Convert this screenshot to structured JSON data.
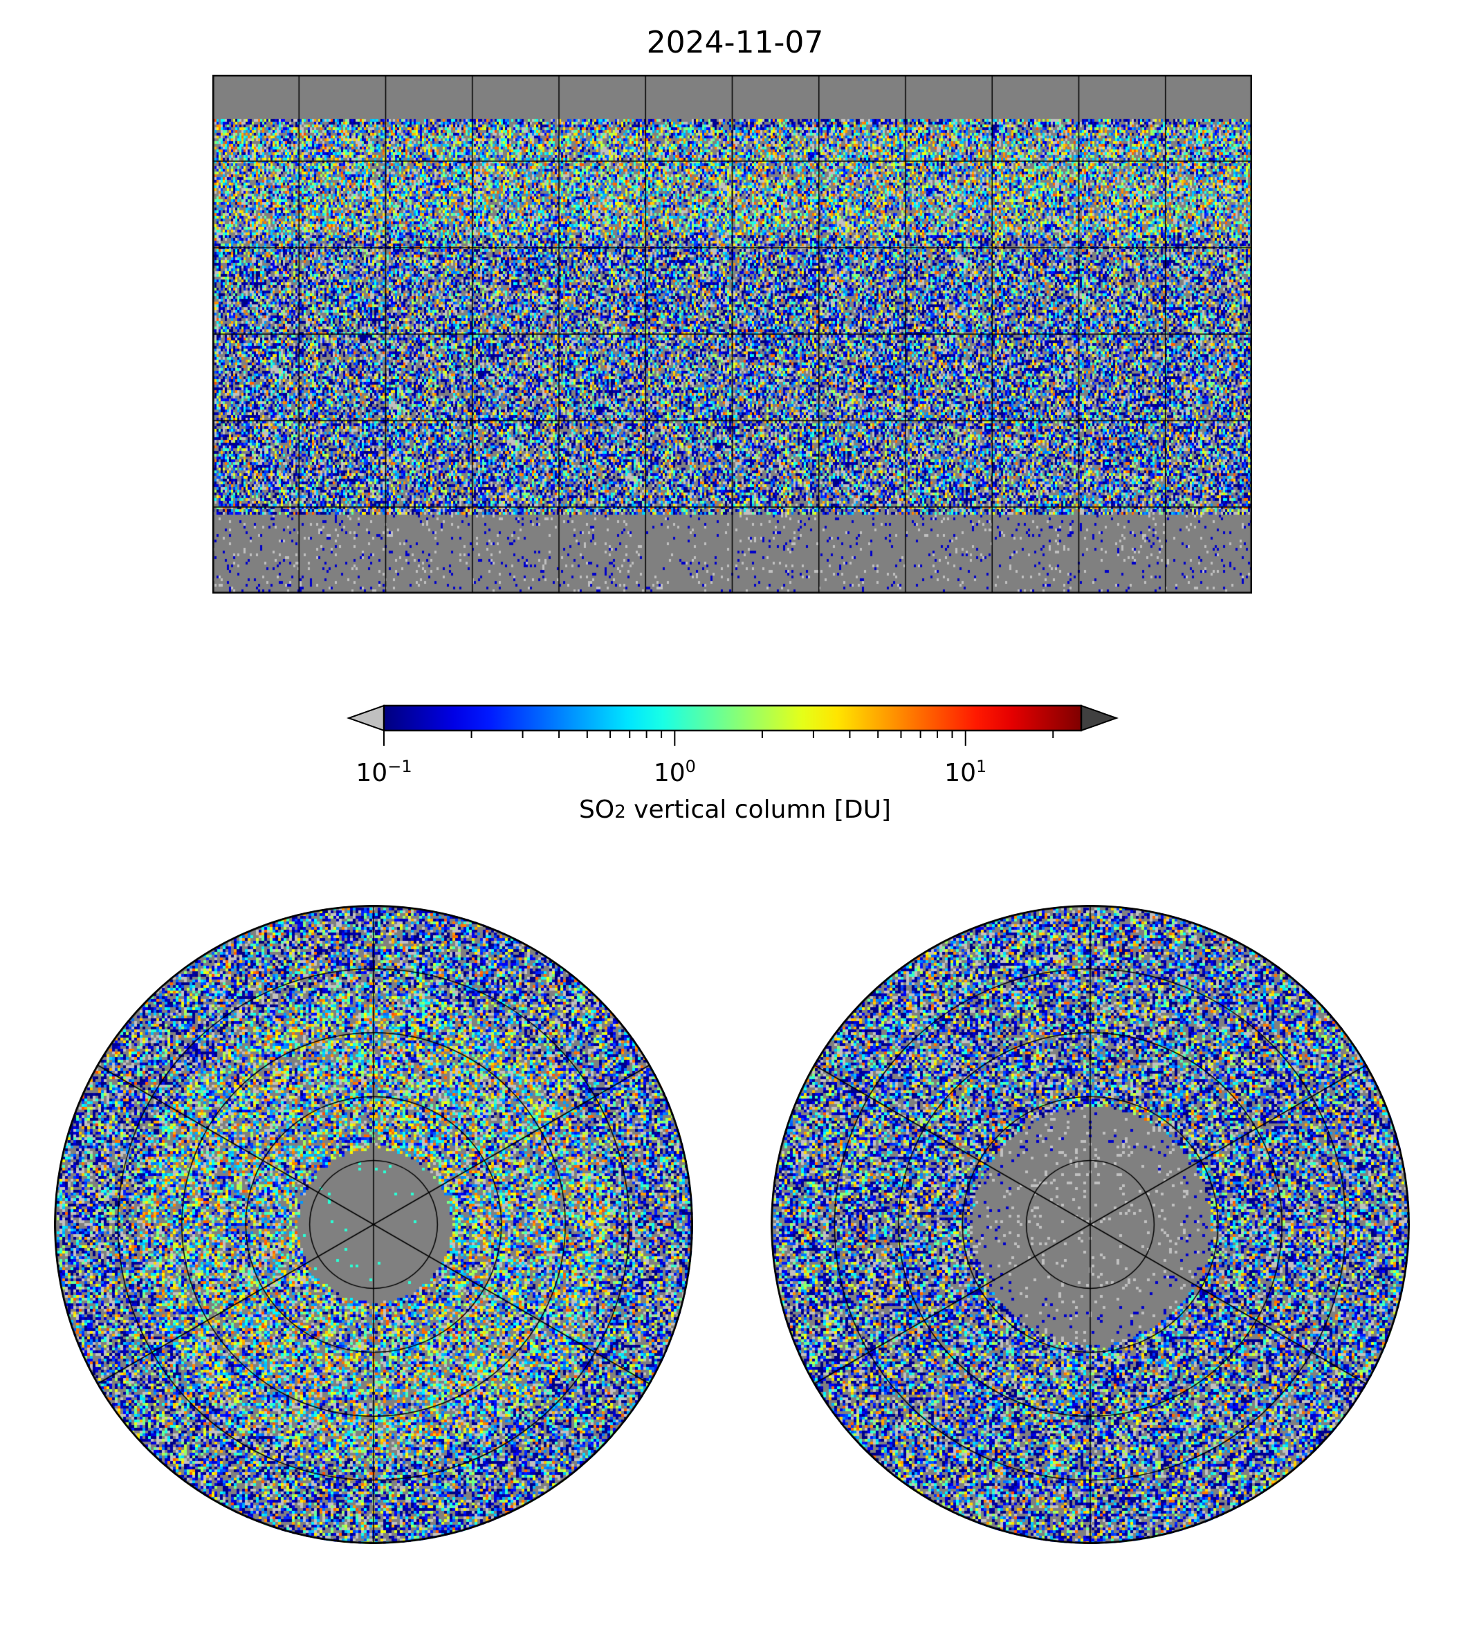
{
  "chart_data": {
    "type": "heatmap",
    "title": "2024-11-07",
    "panels": [
      {
        "name": "global",
        "projection": "plate-carree",
        "lon_range": [
          -180,
          180
        ],
        "lat_range": [
          -90,
          90
        ],
        "gridlines_lon_step": 30,
        "gridlines_lat_step": 30
      },
      {
        "name": "north-polar",
        "projection": "north-polar-stereo",
        "lat_circles": [
          30,
          45,
          60,
          75
        ],
        "meridian_step": 60
      },
      {
        "name": "south-polar",
        "projection": "south-polar-stereo",
        "lat_circles": [
          -30,
          -45,
          -60,
          -75
        ],
        "meridian_step": 60
      }
    ],
    "colorbar": {
      "label": "SO₂ vertical column [DU]",
      "label_text": "SO",
      "label_sub": "2",
      "label_rest": " vertical column [DU]",
      "scale": "log",
      "range": [
        0.1,
        25
      ],
      "extend": "both",
      "colormap": "jet",
      "under_color": "#c0c0c0",
      "over_color": "#404040",
      "ticks": [
        {
          "value": 0.1,
          "base": "10",
          "exp": "−1"
        },
        {
          "value": 1,
          "base": "10",
          "exp": "0"
        },
        {
          "value": 10,
          "base": "10",
          "exp": "1"
        }
      ]
    },
    "nodata_color": "#808080"
  }
}
